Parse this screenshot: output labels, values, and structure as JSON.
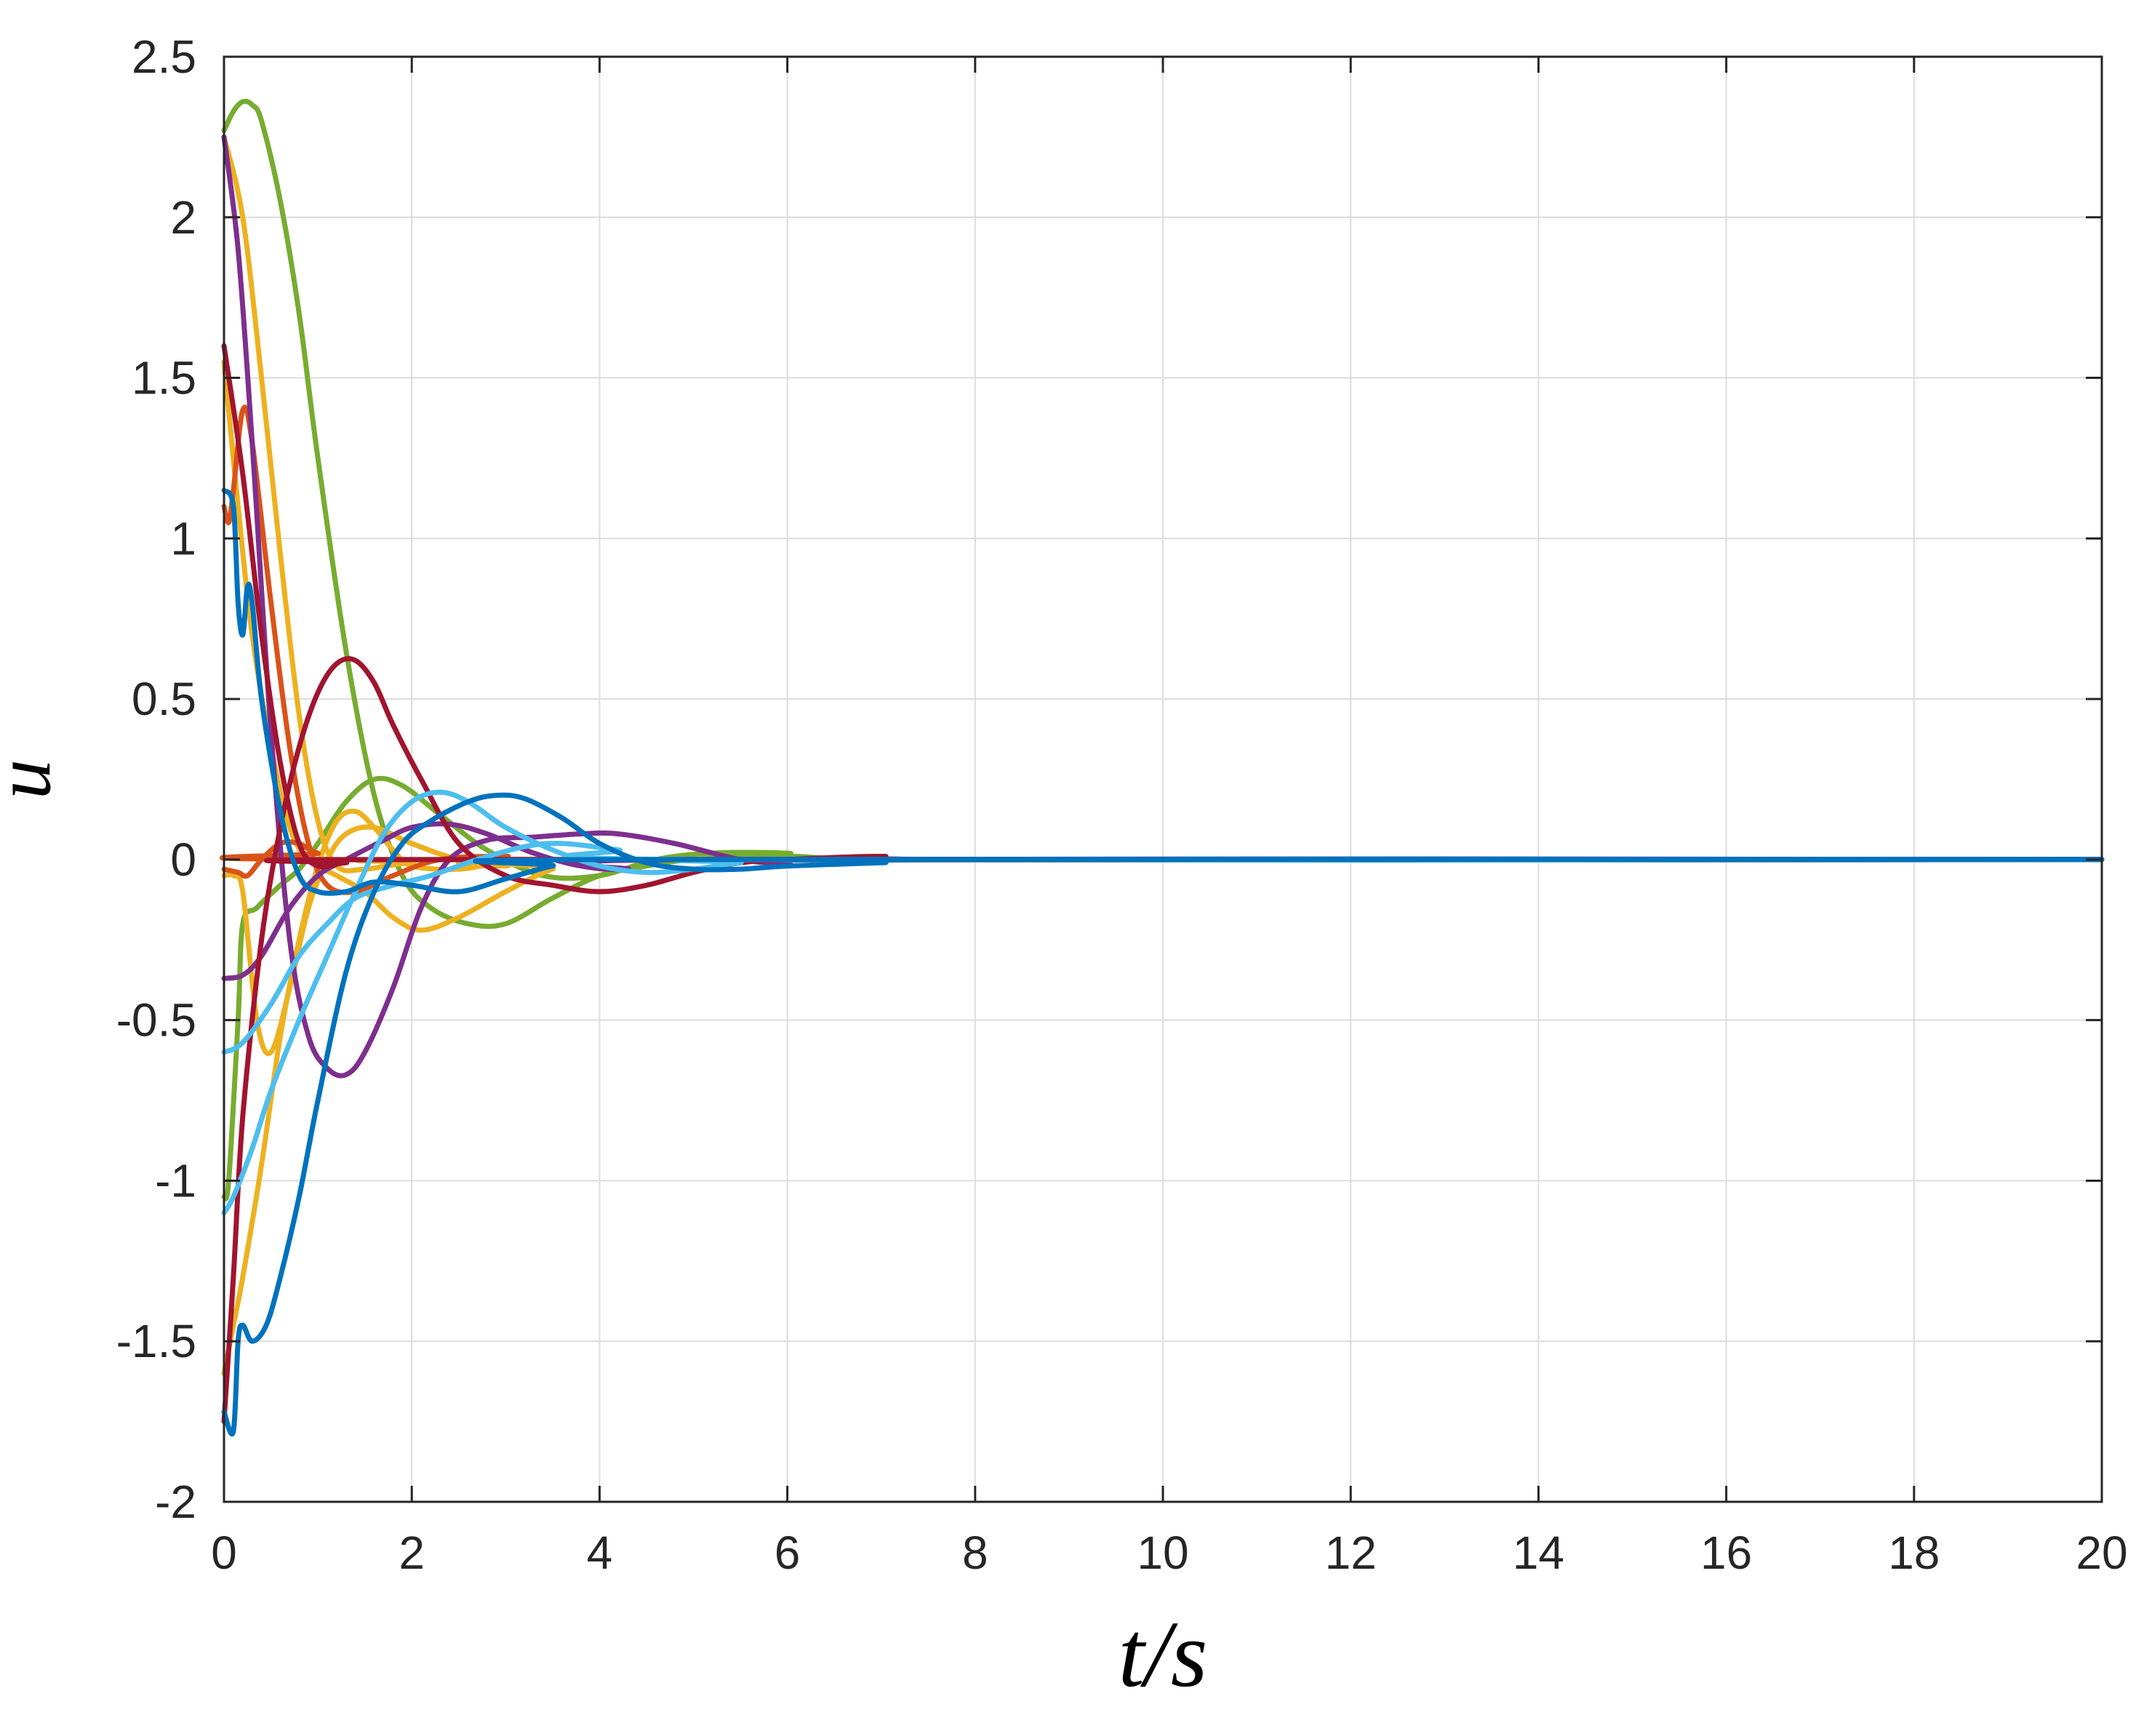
{
  "chart_data": {
    "type": "line",
    "title": "",
    "xlabel": "t/s",
    "ylabel": "u",
    "xlim": [
      0,
      20
    ],
    "ylim": [
      -2,
      2.5
    ],
    "grid": true,
    "xticks": [
      "0",
      "2",
      "4",
      "6",
      "8",
      "10",
      "12",
      "14",
      "16",
      "18",
      "20"
    ],
    "yticks": [
      "-2",
      "-1.5",
      "-1",
      "-0.5",
      "0",
      "0.5",
      "1",
      "1.5",
      "2",
      "2.5"
    ],
    "series": [
      {
        "color": "#77AC30",
        "points": [
          [
            0,
            2.27
          ],
          [
            0.1,
            2.33
          ],
          [
            0.2,
            2.36
          ],
          [
            0.3,
            2.35
          ],
          [
            0.4,
            2.3
          ],
          [
            0.6,
            2.05
          ],
          [
            0.8,
            1.7
          ],
          [
            1.0,
            1.25
          ],
          [
            1.3,
            0.65
          ],
          [
            1.6,
            0.2
          ],
          [
            1.9,
            -0.05
          ],
          [
            2.2,
            -0.15
          ],
          [
            2.6,
            -0.2
          ],
          [
            3.0,
            -0.2
          ],
          [
            3.5,
            -0.12
          ],
          [
            4.0,
            -0.05
          ],
          [
            4.5,
            -0.02
          ],
          [
            5,
            0
          ],
          [
            6,
            0.01
          ],
          [
            8,
            0
          ],
          [
            20,
            0
          ]
        ]
      },
      {
        "color": "#77AC30",
        "points": [
          [
            0,
            -1.05
          ],
          [
            0.05,
            -1.0
          ],
          [
            0.15,
            -0.5
          ],
          [
            0.2,
            -0.2
          ],
          [
            0.35,
            -0.15
          ],
          [
            0.6,
            -0.08
          ],
          [
            0.8,
            -0.03
          ],
          [
            1.0,
            0.05
          ],
          [
            1.3,
            0.18
          ],
          [
            1.6,
            0.25
          ],
          [
            1.9,
            0.23
          ],
          [
            2.3,
            0.14
          ],
          [
            2.8,
            0.03
          ],
          [
            3.4,
            -0.05
          ],
          [
            4.0,
            -0.05
          ],
          [
            4.6,
            0.0
          ],
          [
            5.2,
            0.02
          ],
          [
            6.0,
            0.02
          ],
          [
            7.0,
            0.0
          ],
          [
            20,
            0
          ]
        ]
      },
      {
        "color": "#EDB120",
        "points": [
          [
            0,
            2.25
          ],
          [
            0.2,
            2.0
          ],
          [
            0.4,
            1.5
          ],
          [
            0.6,
            0.95
          ],
          [
            0.8,
            0.45
          ],
          [
            1.0,
            0.12
          ],
          [
            1.2,
            -0.02
          ],
          [
            1.5,
            -0.03
          ],
          [
            2,
            -0.01
          ],
          [
            3,
            0
          ],
          [
            20,
            0
          ]
        ]
      },
      {
        "color": "#EDB120",
        "points": [
          [
            0,
            1.55
          ],
          [
            0.15,
            1.1
          ],
          [
            0.3,
            0.7
          ],
          [
            0.5,
            0.35
          ],
          [
            0.7,
            0.1
          ],
          [
            0.9,
            0.0
          ],
          [
            1.2,
            -0.05
          ],
          [
            1.5,
            -0.1
          ],
          [
            1.8,
            -0.18
          ],
          [
            2.1,
            -0.22
          ],
          [
            2.5,
            -0.18
          ],
          [
            3.0,
            -0.1
          ],
          [
            3.5,
            -0.03
          ],
          [
            4,
            0
          ],
          [
            20,
            0
          ]
        ]
      },
      {
        "color": "#EDB120",
        "points": [
          [
            0,
            -1.6
          ],
          [
            0.1,
            -1.45
          ],
          [
            0.2,
            -1.3
          ],
          [
            0.4,
            -0.95
          ],
          [
            0.6,
            -0.55
          ],
          [
            0.8,
            -0.25
          ],
          [
            1.0,
            -0.02
          ],
          [
            1.2,
            0.12
          ],
          [
            1.4,
            0.15
          ],
          [
            1.6,
            0.1
          ],
          [
            1.8,
            0.03
          ],
          [
            2,
            -0.02
          ],
          [
            2.5,
            -0.03
          ],
          [
            3,
            -0.01
          ],
          [
            4,
            0
          ],
          [
            20,
            0
          ]
        ]
      },
      {
        "color": "#EDB120",
        "points": [
          [
            0,
            -0.05
          ],
          [
            0.1,
            -0.05
          ],
          [
            0.2,
            -0.1
          ],
          [
            0.35,
            -0.5
          ],
          [
            0.5,
            -0.6
          ],
          [
            0.7,
            -0.4
          ],
          [
            0.9,
            -0.15
          ],
          [
            1.1,
            0.0
          ],
          [
            1.3,
            0.08
          ],
          [
            1.6,
            0.1
          ],
          [
            2.0,
            0.05
          ],
          [
            2.5,
            0.0
          ],
          [
            3.0,
            -0.02
          ],
          [
            4,
            0
          ],
          [
            20,
            0
          ]
        ]
      },
      {
        "color": "#D95319",
        "points": [
          [
            0,
            1.1
          ],
          [
            0.05,
            1.05
          ],
          [
            0.1,
            1.15
          ],
          [
            0.2,
            1.4
          ],
          [
            0.3,
            1.3
          ],
          [
            0.5,
            0.8
          ],
          [
            0.7,
            0.35
          ],
          [
            0.9,
            0.05
          ],
          [
            1.1,
            -0.08
          ],
          [
            1.4,
            -0.1
          ],
          [
            1.8,
            -0.05
          ],
          [
            2.3,
            0.0
          ],
          [
            3,
            0.01
          ],
          [
            4,
            0
          ],
          [
            20,
            0
          ]
        ]
      },
      {
        "color": "#D95319",
        "points": [
          [
            0,
            -0.03
          ],
          [
            0.15,
            -0.04
          ],
          [
            0.25,
            -0.05
          ],
          [
            0.4,
            0.0
          ],
          [
            0.6,
            0.05
          ],
          [
            0.8,
            0.05
          ],
          [
            1.0,
            0.02
          ],
          [
            1.5,
            0.0
          ],
          [
            20,
            0
          ]
        ]
      },
      {
        "color": "#7E2F8E",
        "points": [
          [
            0,
            2.25
          ],
          [
            0.15,
            1.9
          ],
          [
            0.3,
            1.3
          ],
          [
            0.5,
            0.4
          ],
          [
            0.7,
            -0.25
          ],
          [
            0.9,
            -0.55
          ],
          [
            1.1,
            -0.65
          ],
          [
            1.3,
            -0.67
          ],
          [
            1.5,
            -0.6
          ],
          [
            1.8,
            -0.4
          ],
          [
            2.1,
            -0.15
          ],
          [
            2.4,
            0.0
          ],
          [
            2.8,
            0.06
          ],
          [
            3.3,
            0.07
          ],
          [
            3.8,
            0.08
          ],
          [
            4.2,
            0.08
          ],
          [
            4.8,
            0.05
          ],
          [
            5.5,
            0.0
          ],
          [
            6,
            -0.01
          ],
          [
            7,
            0
          ],
          [
            20,
            0
          ]
        ]
      },
      {
        "color": "#7E2F8E",
        "points": [
          [
            0,
            -0.37
          ],
          [
            0.2,
            -0.36
          ],
          [
            0.4,
            -0.3
          ],
          [
            0.7,
            -0.15
          ],
          [
            1.0,
            -0.05
          ],
          [
            1.3,
            0.0
          ],
          [
            1.7,
            0.06
          ],
          [
            2.0,
            0.1
          ],
          [
            2.4,
            0.11
          ],
          [
            2.8,
            0.08
          ],
          [
            3.3,
            0.02
          ],
          [
            3.8,
            -0.02
          ],
          [
            4.3,
            -0.03
          ],
          [
            5,
            0
          ],
          [
            20,
            0
          ]
        ]
      },
      {
        "color": "#A2142F",
        "points": [
          [
            0,
            -1.75
          ],
          [
            0.1,
            -1.3
          ],
          [
            0.2,
            -0.8
          ],
          [
            0.4,
            -0.25
          ],
          [
            0.6,
            0.1
          ],
          [
            0.8,
            0.35
          ],
          [
            1.0,
            0.52
          ],
          [
            1.2,
            0.61
          ],
          [
            1.4,
            0.62
          ],
          [
            1.6,
            0.55
          ],
          [
            1.8,
            0.42
          ],
          [
            2.1,
            0.25
          ],
          [
            2.5,
            0.05
          ],
          [
            3.0,
            -0.05
          ],
          [
            3.5,
            -0.08
          ],
          [
            4.0,
            -0.1
          ],
          [
            4.5,
            -0.08
          ],
          [
            5.0,
            -0.04
          ],
          [
            5.5,
            -0.01
          ],
          [
            6,
            0.0
          ],
          [
            7,
            0.01
          ],
          [
            8,
            0
          ],
          [
            20,
            0
          ]
        ]
      },
      {
        "color": "#A2142F",
        "points": [
          [
            0,
            1.6
          ],
          [
            0.2,
            1.2
          ],
          [
            0.4,
            0.7
          ],
          [
            0.6,
            0.3
          ],
          [
            0.8,
            0.05
          ],
          [
            1.0,
            -0.02
          ],
          [
            1.3,
            -0.01
          ],
          [
            2,
            0
          ],
          [
            20,
            0
          ]
        ]
      },
      {
        "color": "#4DBEEE",
        "points": [
          [
            0,
            -1.1
          ],
          [
            0.1,
            -1.05
          ],
          [
            0.3,
            -0.9
          ],
          [
            0.5,
            -0.72
          ],
          [
            0.8,
            -0.5
          ],
          [
            1.1,
            -0.3
          ],
          [
            1.4,
            -0.1
          ],
          [
            1.7,
            0.08
          ],
          [
            2.0,
            0.18
          ],
          [
            2.3,
            0.21
          ],
          [
            2.6,
            0.18
          ],
          [
            3.0,
            0.1
          ],
          [
            3.5,
            0.03
          ],
          [
            4,
            -0.02
          ],
          [
            4.5,
            -0.04
          ],
          [
            5,
            -0.03
          ],
          [
            5.5,
            -0.01
          ],
          [
            6,
            0
          ],
          [
            20,
            0
          ]
        ]
      },
      {
        "color": "#4DBEEE",
        "points": [
          [
            0,
            -0.6
          ],
          [
            0.2,
            -0.57
          ],
          [
            0.5,
            -0.45
          ],
          [
            0.8,
            -0.3
          ],
          [
            1.1,
            -0.2
          ],
          [
            1.4,
            -0.12
          ],
          [
            1.8,
            -0.08
          ],
          [
            2.2,
            -0.05
          ],
          [
            2.7,
            0.0
          ],
          [
            3.2,
            0.04
          ],
          [
            3.6,
            0.05
          ],
          [
            4.2,
            0.03
          ],
          [
            5,
            0
          ],
          [
            20,
            0
          ]
        ]
      },
      {
        "color": "#0072BD",
        "points": [
          [
            0,
            1.15
          ],
          [
            0.1,
            1.1
          ],
          [
            0.15,
            0.8
          ],
          [
            0.2,
            0.7
          ],
          [
            0.25,
            0.85
          ],
          [
            0.3,
            0.8
          ],
          [
            0.4,
            0.5
          ],
          [
            0.6,
            0.15
          ],
          [
            0.8,
            -0.05
          ],
          [
            1.0,
            -0.1
          ],
          [
            1.3,
            -0.1
          ],
          [
            1.6,
            -0.07
          ],
          [
            2.0,
            -0.08
          ],
          [
            2.5,
            -0.1
          ],
          [
            3.0,
            -0.06
          ],
          [
            3.5,
            -0.02
          ],
          [
            4,
            0
          ],
          [
            20,
            0
          ]
        ]
      },
      {
        "color": "#0072BD",
        "points": [
          [
            0,
            -1.72
          ],
          [
            0.1,
            -1.78
          ],
          [
            0.15,
            -1.5
          ],
          [
            0.2,
            -1.45
          ],
          [
            0.3,
            -1.5
          ],
          [
            0.45,
            -1.45
          ],
          [
            0.6,
            -1.3
          ],
          [
            0.8,
            -1.05
          ],
          [
            1.0,
            -0.75
          ],
          [
            1.3,
            -0.35
          ],
          [
            1.6,
            -0.1
          ],
          [
            1.9,
            0.05
          ],
          [
            2.2,
            0.12
          ],
          [
            2.6,
            0.18
          ],
          [
            2.9,
            0.2
          ],
          [
            3.2,
            0.19
          ],
          [
            3.6,
            0.13
          ],
          [
            4.0,
            0.05
          ],
          [
            4.5,
            -0.01
          ],
          [
            5.0,
            -0.03
          ],
          [
            5.5,
            -0.03
          ],
          [
            6,
            -0.02
          ],
          [
            7,
            -0.01
          ],
          [
            8,
            0
          ],
          [
            20,
            0
          ]
        ]
      }
    ]
  }
}
